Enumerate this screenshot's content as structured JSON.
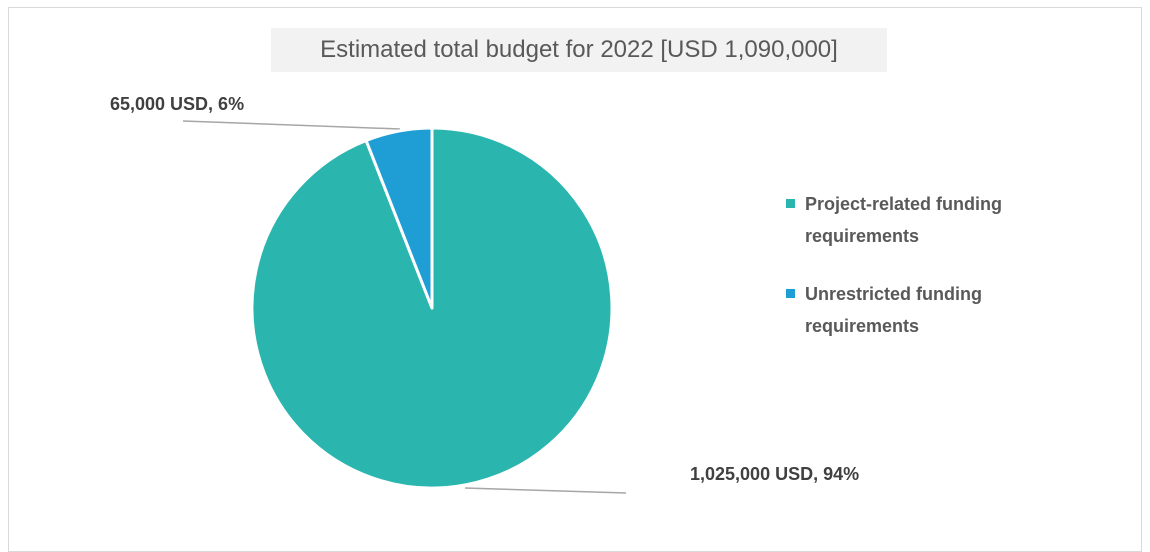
{
  "chart_data": {
    "type": "pie",
    "title": "Estimated total budget for 2022 [USD 1,090,000]",
    "slices": [
      {
        "label": "Project-related funding requirements",
        "value": 1025000,
        "percent": 94,
        "data_label": "1,025,000 USD, 94%",
        "color": "#2ab5af"
      },
      {
        "label": "Unrestricted funding requirements",
        "value": 65000,
        "percent": 6,
        "data_label": "65,000 USD, 6%",
        "color": "#1f9ed6"
      }
    ],
    "legend_position": "right"
  }
}
